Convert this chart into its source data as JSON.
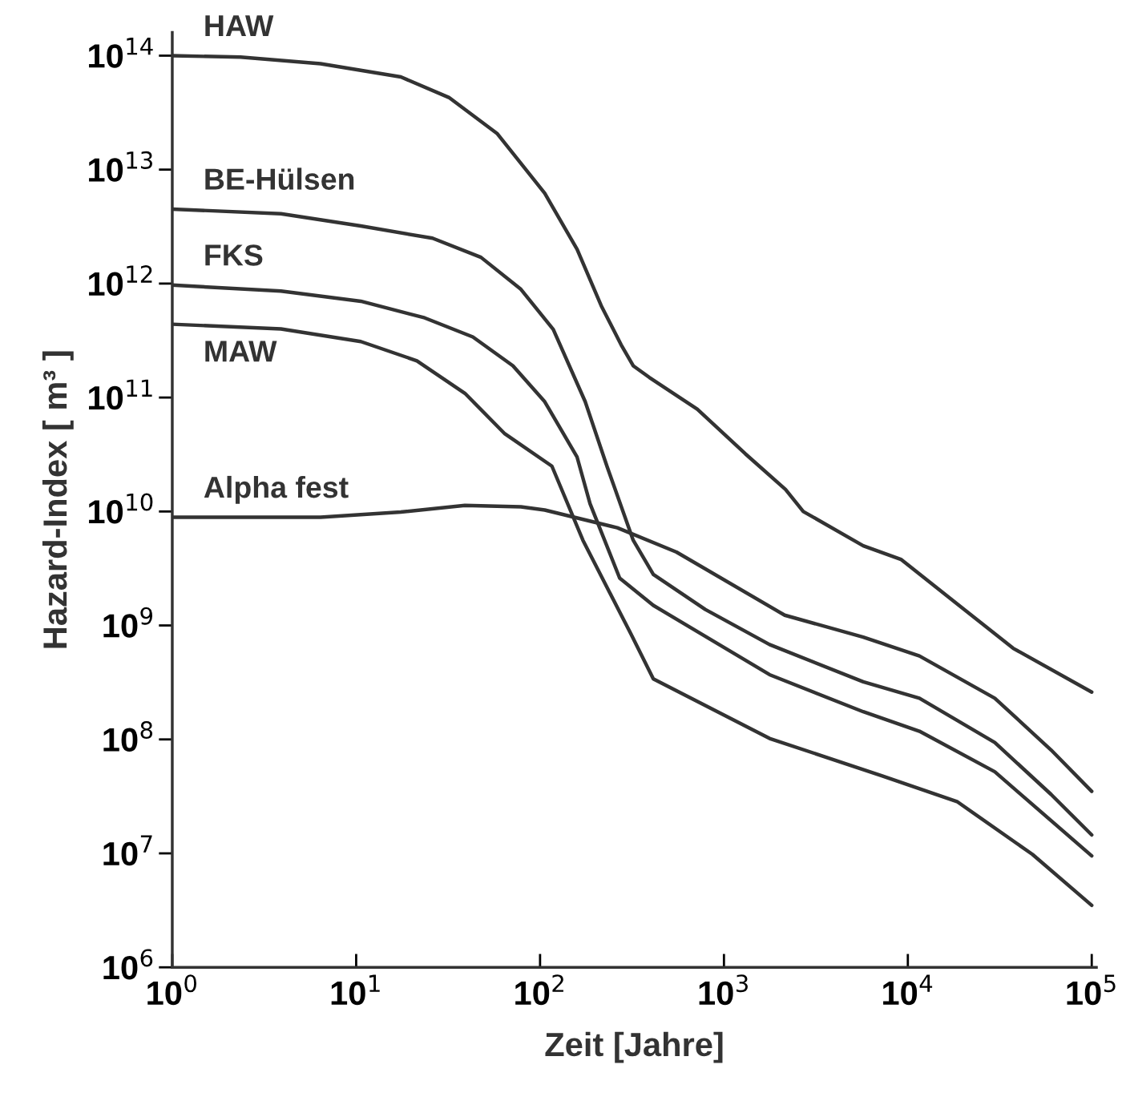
{
  "chart_data": {
    "type": "line",
    "xlabel": "Zeit [Jahre]",
    "ylabel": "Hazard-Index [ m³ ]",
    "log": "xy",
    "grid": false,
    "legend": false,
    "marker": "none",
    "line_style": "solid",
    "xlim": [
      1,
      106000
    ],
    "ylim": [
      1000000,
      160000000000000
    ],
    "xticks": [
      {
        "value": 1,
        "label": "10$^{0}$"
      },
      {
        "value": 10,
        "label": "10$^{1}$"
      },
      {
        "value": 100,
        "label": "10$^{2}$"
      },
      {
        "value": 1000,
        "label": "10$^{3}$"
      },
      {
        "value": 10000,
        "label": "10$^{4}$"
      },
      {
        "value": 100000,
        "label": "10$^{5}$"
      }
    ],
    "yticks": [
      {
        "value": 1000000,
        "label": "10$^{6}$"
      },
      {
        "value": 10000000,
        "label": "10$^{7}$"
      },
      {
        "value": 100000000,
        "label": "10$^{8}$"
      },
      {
        "value": 1000000000,
        "label": "10$^{9}$"
      },
      {
        "value": 10000000000,
        "label": "10$^{10}$"
      },
      {
        "value": 100000000000,
        "label": "10$^{11}$"
      },
      {
        "value": 1000000000000,
        "label": "10$^{12}$"
      },
      {
        "value": 10000000000000,
        "label": "10$^{13}$"
      },
      {
        "value": 100000000000000,
        "label": "10$^{14}$"
      }
    ],
    "series": [
      {
        "name": "HAW",
        "color": "#333333",
        "x": [
          1,
          2.35,
          6.4,
          17.5,
          31.9,
          58.3,
          106,
          159,
          215,
          276,
          321,
          393,
          716,
          1309,
          2163,
          2700,
          5720,
          9170,
          18500,
          37400,
          100000
        ],
        "values": [
          100000000000000.0,
          97000000000000.0,
          85000000000000.0,
          65000000000000.0,
          43000000000000.0,
          20800000000000.0,
          6200000000000.0,
          2000000000000.0,
          640000000000.0,
          290000000000.0,
          190000000000.0,
          150000000000.0,
          79000000000.0,
          32000000000.0,
          15600000000.0,
          10000000000.0,
          5000000000.0,
          3800000000.0,
          1550000000.0,
          630000000.0,
          260000000.0
        ]
      },
      {
        "name": "BE-Hülsen",
        "color": "#333333",
        "x": [
          1,
          3.9,
          10.6,
          26,
          47.7,
          78.7,
          118,
          176,
          231,
          321,
          413,
          792,
          1770,
          5720,
          11560,
          29700,
          60000,
          100000
        ],
        "values": [
          4500000000000.0,
          4100000000000.0,
          3200000000000.0,
          2500000000000.0,
          1700000000000.0,
          890000000000.0,
          396000000000.0,
          92000000000.0,
          25000000000.0,
          5600000000.0,
          2800000000.0,
          1380000000.0,
          680000000.0,
          320000000.0,
          230000000.0,
          94000000.0,
          33000000.0,
          14500000.0
        ]
      },
      {
        "name": "FKS",
        "color": "#333333",
        "x": [
          1,
          3.9,
          10.6,
          23.6,
          43.1,
          71.2,
          106,
          159,
          187,
          271,
          413,
          1770,
          5720,
          11560,
          29700,
          100000
        ],
        "values": [
          970000000000.0,
          860000000000.0,
          700000000000.0,
          500000000000.0,
          340000000000.0,
          190000000000.0,
          92000000000.0,
          30000000000.0,
          11700000000.0,
          2600000000.0,
          1500000000.0,
          370000000.0,
          175000000.0,
          118000000.0,
          52000000.0,
          9500000.0
        ]
      },
      {
        "name": "MAW",
        "color": "#333333",
        "x": [
          1,
          3.9,
          10.6,
          21.4,
          39,
          64.4,
          116,
          171,
          311,
          413,
          1770,
          7210,
          18500,
          47600,
          100000
        ],
        "values": [
          440000000000.0,
          400000000000.0,
          310000000000.0,
          210000000000.0,
          109000000000.0,
          48000000000.0,
          25000000000.0,
          5600000000.0,
          850000000.0,
          340000000.0,
          102000000.0,
          48000000.0,
          28500000.0,
          9800000.0,
          3500000.0
        ]
      },
      {
        "name": "Alpha fest",
        "color": "#333333",
        "x": [
          1,
          6.4,
          17.5,
          39,
          78.7,
          106,
          263,
          552,
          2140,
          5720,
          11560,
          29700,
          60000,
          100000
        ],
        "values": [
          8900000000.0,
          8900000000.0,
          9900000000.0,
          11300000000.0,
          11000000000.0,
          10300000000.0,
          7200000000.0,
          4400000000.0,
          1230000000.0,
          790000000.0,
          540000000.0,
          230000000.0,
          81000000.0,
          35000000.0
        ]
      }
    ]
  }
}
